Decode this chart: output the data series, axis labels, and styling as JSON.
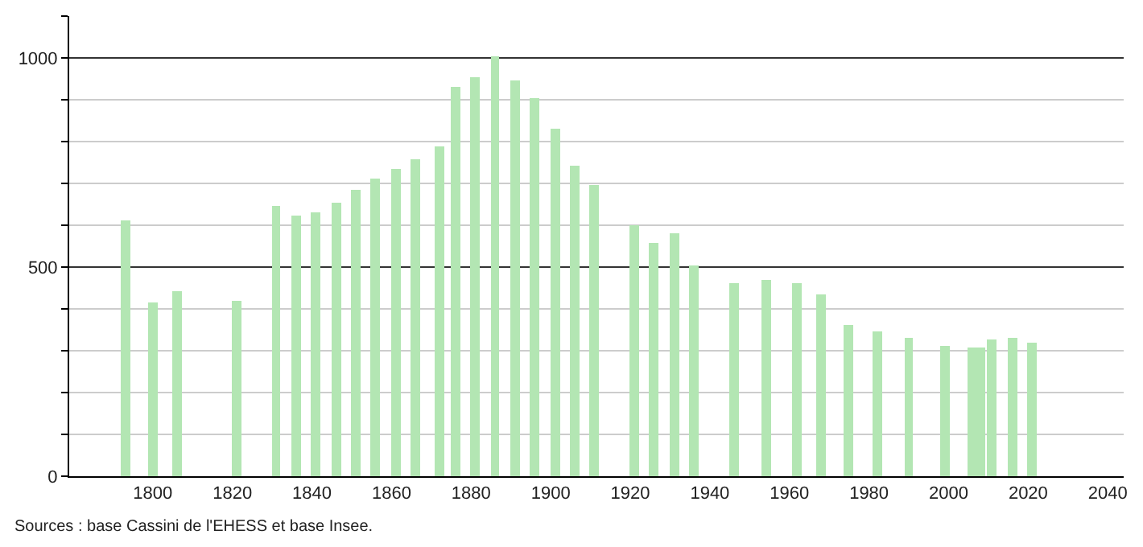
{
  "chart_data": {
    "type": "bar",
    "x": [
      1793,
      1800,
      1806,
      1821,
      1831,
      1836,
      1841,
      1846,
      1851,
      1856,
      1861,
      1866,
      1872,
      1876,
      1881,
      1886,
      1891,
      1896,
      1901,
      1906,
      1911,
      1921,
      1926,
      1931,
      1936,
      1946,
      1954,
      1962,
      1968,
      1975,
      1982,
      1990,
      1999,
      2006,
      2008,
      2011,
      2016,
      2021
    ],
    "values": [
      612,
      414,
      442,
      418,
      646,
      624,
      631,
      655,
      686,
      711,
      734,
      758,
      787,
      932,
      954,
      1005,
      947,
      905,
      829,
      741,
      698,
      600,
      559,
      579,
      503,
      460,
      468,
      460,
      435,
      361,
      346,
      332,
      312,
      307,
      308,
      327,
      332,
      320
    ],
    "color": "#b3e6b3",
    "xlim": [
      1779,
      2044
    ],
    "xticks": [
      1800,
      1820,
      1840,
      1860,
      1880,
      1900,
      1920,
      1940,
      1960,
      1980,
      2000,
      2020,
      2040
    ],
    "ylim": [
      0,
      1100
    ],
    "yticks": [
      0,
      {
        "value": 100,
        "label": null
      },
      {
        "value": 200,
        "label": null
      },
      {
        "value": 300,
        "label": null
      },
      {
        "value": 400,
        "label": null
      },
      500,
      {
        "value": 600,
        "label": null
      },
      {
        "value": 700,
        "label": null
      },
      {
        "value": 800,
        "label": null
      },
      {
        "value": 900,
        "label": null
      },
      1000,
      {
        "value": 1100,
        "label": null
      }
    ],
    "grid": "y",
    "legend": false,
    "annotations": [
      "Sources : base Cassini de l'EHESS et base Insee."
    ]
  }
}
